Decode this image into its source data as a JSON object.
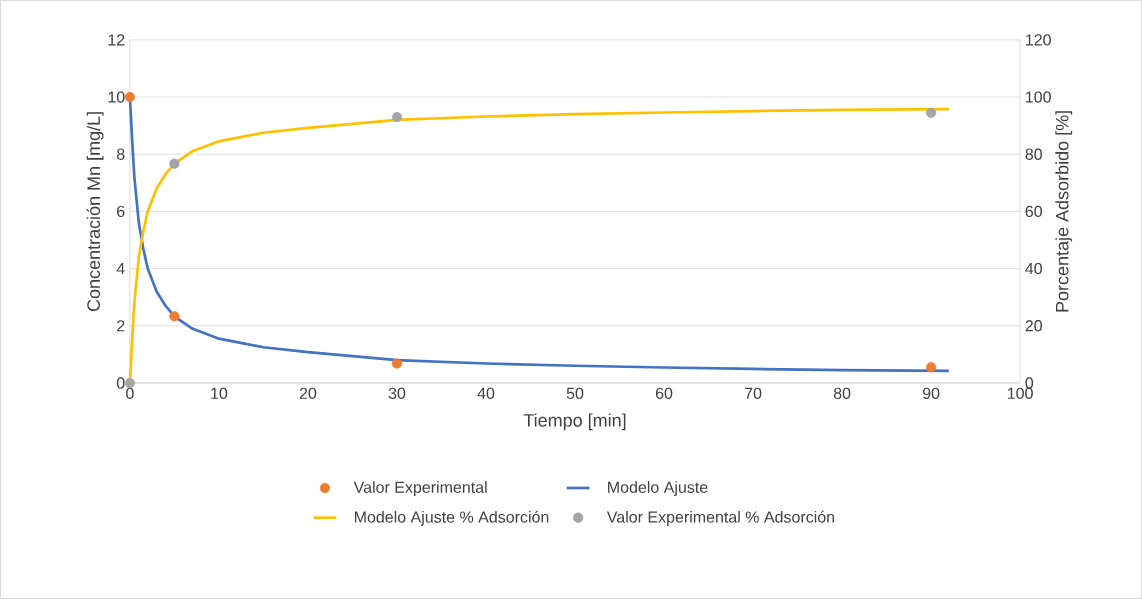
{
  "chart_data": {
    "type": "line",
    "xlabel": "Tiempo [min]",
    "ylabel": "Concentración Mn [mg/L]",
    "y2label": "Porcentaje Adsorbido [%]",
    "xlim": [
      0,
      100
    ],
    "xticks": [
      0,
      10,
      20,
      30,
      40,
      50,
      60,
      70,
      80,
      90,
      100
    ],
    "ylim": [
      0,
      12
    ],
    "yticks": [
      0,
      2,
      4,
      6,
      8,
      10,
      12
    ],
    "y2lim": [
      0,
      120
    ],
    "y2ticks": [
      0,
      20,
      40,
      60,
      80,
      100,
      120
    ],
    "grid": "y",
    "legend": "bottom",
    "series": [
      {
        "name": "Valor Experimental",
        "type": "scatter",
        "color": "#ed7d31",
        "x": [
          0,
          5,
          30,
          90
        ],
        "values": [
          10,
          2.33,
          0.68,
          0.55
        ]
      },
      {
        "name": "Modelo Ajuste",
        "color": "#4472c4",
        "x": [
          0,
          0.25,
          0.5,
          1,
          1.5,
          2,
          3,
          4,
          5,
          7,
          10,
          15,
          20,
          30,
          40,
          50,
          60,
          70,
          80,
          92
        ],
        "values": [
          10,
          8.5,
          7.2,
          5.6,
          4.7,
          4.0,
          3.2,
          2.7,
          2.33,
          1.9,
          1.55,
          1.25,
          1.08,
          0.8,
          0.68,
          0.6,
          0.54,
          0.49,
          0.45,
          0.42
        ]
      },
      {
        "name": "Modelo Ajuste % Adsorción",
        "axis": "y2",
        "color": "#ffc000",
        "x": [
          0,
          0.25,
          0.5,
          1,
          1.5,
          2,
          3,
          4,
          5,
          7,
          10,
          15,
          20,
          30,
          40,
          50,
          60,
          70,
          80,
          92
        ],
        "values": [
          0,
          15,
          28,
          44,
          53,
          60,
          68,
          73,
          76.7,
          81,
          84.5,
          87.5,
          89.2,
          92,
          93.2,
          94,
          94.6,
          95.1,
          95.5,
          95.8
        ]
      },
      {
        "name": "Valor Experimental % Adsorción",
        "type": "scatter",
        "axis": "y2",
        "color": "#a5a5a5",
        "x": [
          0,
          5,
          30,
          90
        ],
        "values": [
          0,
          76.7,
          93,
          94.5
        ]
      }
    ]
  }
}
